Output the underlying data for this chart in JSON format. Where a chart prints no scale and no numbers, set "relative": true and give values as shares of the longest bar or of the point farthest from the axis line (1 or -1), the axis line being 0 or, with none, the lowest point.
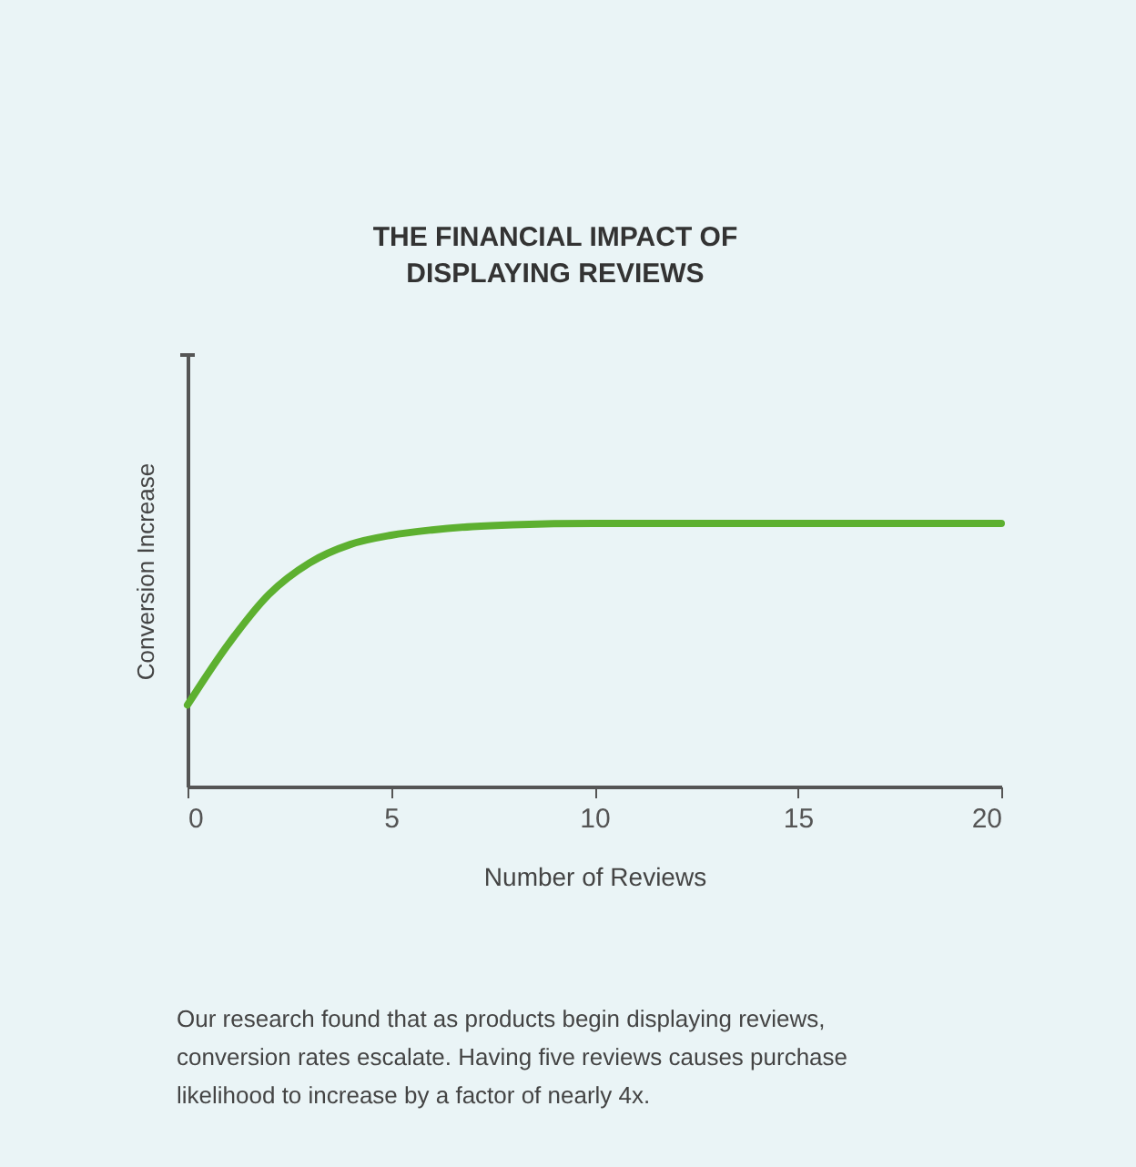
{
  "chart_data": {
    "type": "line",
    "title": "THE FINANCIAL IMPACT OF\nDISPLAYING REVIEWS",
    "xlabel": "Number of Reviews",
    "ylabel": "Conversion Increase",
    "relative": true,
    "x": [
      0,
      1,
      2,
      3,
      4,
      5,
      6,
      7,
      8,
      10,
      12,
      15,
      20
    ],
    "series": [
      {
        "color": "#5db030",
        "values": [
          0.31,
          0.54,
          0.73,
          0.85,
          0.92,
          0.955,
          0.975,
          0.988,
          0.995,
          1,
          1,
          1,
          1
        ]
      }
    ],
    "xlim": [
      0,
      20
    ],
    "xticks": [
      0,
      5,
      10,
      15,
      20
    ],
    "grid": false,
    "marker": "none",
    "line_style": "solid",
    "annotations": [
      "Our research found that as products begin displaying reviews,\nconversion rates escalate. Having five reviews causes purchase\nlikelihood to increase by a factor of nearly 4x."
    ]
  }
}
